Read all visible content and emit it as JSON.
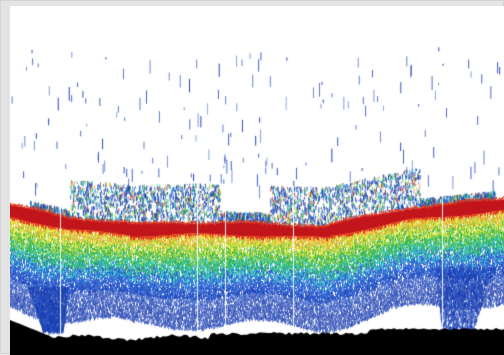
{
  "image": {
    "kind": "echogram",
    "background_color": "#ffffff",
    "frame_color": "#e4e4e4",
    "seabed_color": "#000000",
    "scatter_colors": [
      "#1d3fb0",
      "#2a5fd0",
      "#2ec4c8",
      "#2fb34a",
      "#9ed335",
      "#f2e83a",
      "#f59a2a",
      "#e23a1e"
    ],
    "layer_color": "#c2151b"
  }
}
